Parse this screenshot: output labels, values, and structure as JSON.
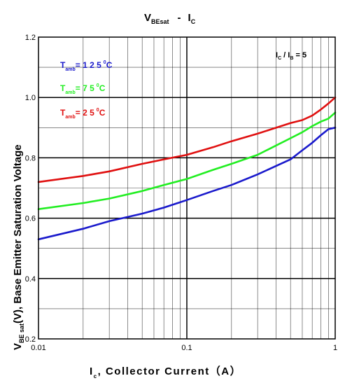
{
  "chart_data": {
    "type": "line",
    "title": "V",
    "title_sub": "BEsat",
    "title_sep": "-",
    "title_main2": "I",
    "title_sub2": "C",
    "xlabel_main": "I",
    "xlabel_sub": "c",
    "xlabel_rest": ", Collector Current（A）",
    "ylabel_main": "V",
    "ylabel_sub": "BE sat",
    "ylabel_rest": "(V), Base Emitter Saturation Voltage",
    "x_scale": "log",
    "xlim": [
      0.01,
      1
    ],
    "ylim": [
      0.2,
      1.2
    ],
    "x_ticks": [
      {
        "value": 0.01,
        "label": "0.01"
      },
      {
        "value": 0.1,
        "label": "0.1"
      },
      {
        "value": 1,
        "label": "1"
      }
    ],
    "y_ticks": [
      {
        "value": 0.2,
        "label": "0.2"
      },
      {
        "value": 0.4,
        "label": "0.4"
      },
      {
        "value": 0.6,
        "label": "0.6"
      },
      {
        "value": 0.8,
        "label": "0.8"
      },
      {
        "value": 1.0,
        "label": "1.0"
      },
      {
        "value": 1.2,
        "label": "1.2"
      }
    ],
    "grid": true,
    "annotation": {
      "main": "I",
      "sub": "C",
      "sep": " / I",
      "sub2": "B",
      "rest": " = 5"
    },
    "series": [
      {
        "name_main": "T",
        "name_sub": "amb",
        "name_rest": "= 1 2 5",
        "name_sup": "0",
        "name_unit": "C",
        "color": "#1a1acc",
        "x": [
          0.01,
          0.02,
          0.03,
          0.05,
          0.07,
          0.1,
          0.15,
          0.2,
          0.3,
          0.5,
          0.6,
          0.7,
          0.8,
          0.9,
          1.0
        ],
        "y": [
          0.53,
          0.565,
          0.59,
          0.615,
          0.635,
          0.66,
          0.69,
          0.71,
          0.745,
          0.795,
          0.825,
          0.85,
          0.875,
          0.895,
          0.9
        ]
      },
      {
        "name_main": "T",
        "name_sub": "amb",
        "name_rest": "= 7 5",
        "name_sup": "0",
        "name_unit": "C",
        "color": "#22ee22",
        "x": [
          0.01,
          0.02,
          0.03,
          0.05,
          0.07,
          0.1,
          0.15,
          0.2,
          0.3,
          0.5,
          0.6,
          0.7,
          0.8,
          0.9,
          1.0
        ],
        "y": [
          0.63,
          0.65,
          0.665,
          0.69,
          0.71,
          0.73,
          0.76,
          0.78,
          0.81,
          0.865,
          0.885,
          0.905,
          0.92,
          0.93,
          0.95
        ]
      },
      {
        "name_main": "T",
        "name_sub": "amb",
        "name_rest": "= 2 5",
        "name_sup": "0",
        "name_unit": "C",
        "color": "#e01010",
        "x": [
          0.01,
          0.02,
          0.03,
          0.05,
          0.07,
          0.1,
          0.15,
          0.2,
          0.3,
          0.5,
          0.6,
          0.7,
          0.8,
          0.9,
          1.0
        ],
        "y": [
          0.72,
          0.74,
          0.755,
          0.78,
          0.795,
          0.81,
          0.835,
          0.855,
          0.88,
          0.915,
          0.925,
          0.94,
          0.96,
          0.98,
          1.0
        ]
      }
    ]
  }
}
